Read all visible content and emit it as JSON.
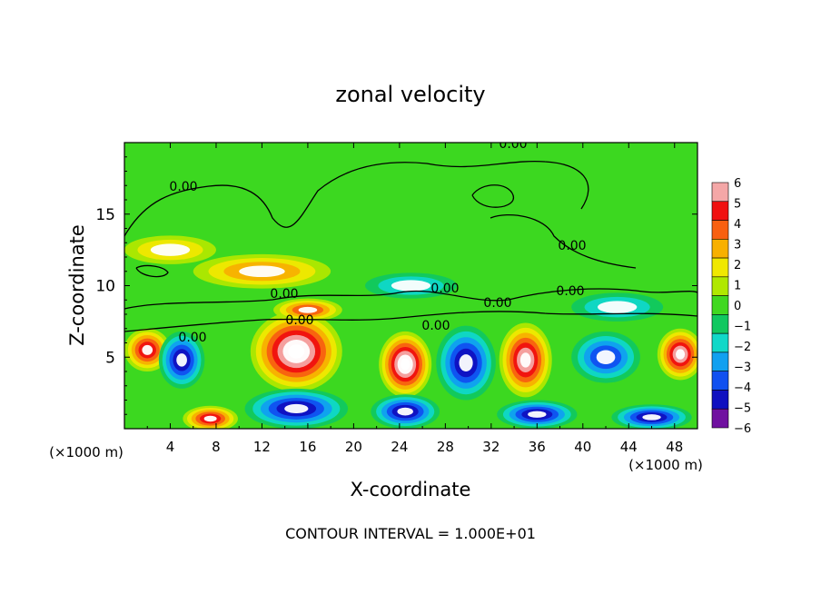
{
  "chart_data": {
    "type": "heatmap",
    "title": "zonal velocity",
    "xlabel": "X-coordinate",
    "ylabel": "Z-coordinate",
    "x_unit_left": "(×1000 m)",
    "x_unit_right": "(×1000 m)",
    "xlim": [
      0,
      50
    ],
    "ylim": [
      0,
      20
    ],
    "xticks": [
      "4",
      "8",
      "12",
      "16",
      "20",
      "24",
      "28",
      "32",
      "36",
      "40",
      "44",
      "48"
    ],
    "yticks": [
      "5",
      "10",
      "15"
    ],
    "colorbar": {
      "labels": [
        "6",
        "5",
        "4",
        "3",
        "2",
        "1",
        "0",
        "−1",
        "−2",
        "−3",
        "−4",
        "−5",
        "−6"
      ],
      "colors": [
        "#f4a7a7",
        "#f01010",
        "#f86010",
        "#f8b000",
        "#f0e800",
        "#b0e800",
        "#40d820",
        "#10c860",
        "#10d8c8",
        "#10a0f0",
        "#1050f0",
        "#1010c0",
        "#7010a0"
      ]
    },
    "contour_labels": [
      "0.00",
      "0.00",
      "0.00",
      "0.00",
      "0.00",
      "0.00",
      "0.00",
      "0.00",
      "0.00",
      "0.00"
    ],
    "footnote": "CONTOUR INTERVAL = 1.000E+01",
    "features": [
      {
        "kind": "warm",
        "x": 2,
        "z": 5.5,
        "rx": 2,
        "rz": 1.5,
        "v": 5
      },
      {
        "kind": "cold",
        "x": 5,
        "z": 4.8,
        "rx": 2,
        "rz": 2,
        "v": -5
      },
      {
        "kind": "warm",
        "x": 15,
        "z": 5.4,
        "rx": 4,
        "rz": 2.8,
        "v": 7
      },
      {
        "kind": "cold",
        "x": 15,
        "z": 1.4,
        "rx": 4.5,
        "rz": 1.4,
        "v": -5
      },
      {
        "kind": "warm",
        "x": 24.5,
        "z": 4.5,
        "rx": 2.3,
        "rz": 2.3,
        "v": 7
      },
      {
        "kind": "cold",
        "x": 24.5,
        "z": 1.2,
        "rx": 3,
        "rz": 1.2,
        "v": -5
      },
      {
        "kind": "cold",
        "x": 29.8,
        "z": 4.6,
        "rx": 2.6,
        "rz": 2.6,
        "v": -5
      },
      {
        "kind": "warm",
        "x": 35,
        "z": 4.8,
        "rx": 2.3,
        "rz": 2.6,
        "v": 6
      },
      {
        "kind": "cold",
        "x": 42,
        "z": 5,
        "rx": 3,
        "rz": 1.8,
        "v": -4
      },
      {
        "kind": "warm",
        "x": 48.5,
        "z": 5.2,
        "rx": 2,
        "rz": 1.8,
        "v": 6
      },
      {
        "kind": "warm",
        "x": 7.5,
        "z": 0.7,
        "rx": 2.4,
        "rz": 0.9,
        "v": 5
      },
      {
        "kind": "cold",
        "x": 36,
        "z": 1.0,
        "rx": 3.5,
        "rz": 1.0,
        "v": -5
      },
      {
        "kind": "cold",
        "x": 46,
        "z": 0.8,
        "rx": 3.5,
        "rz": 0.9,
        "v": -5
      },
      {
        "kind": "warm",
        "x": 12,
        "z": 11,
        "rx": 6,
        "rz": 1.2,
        "v": 3
      },
      {
        "kind": "warm",
        "x": 4,
        "z": 12.5,
        "rx": 4,
        "rz": 1,
        "v": 2
      },
      {
        "kind": "warm",
        "x": 16,
        "z": 8.3,
        "rx": 3,
        "rz": 0.8,
        "v": 4
      },
      {
        "kind": "cold",
        "x": 25,
        "z": 10,
        "rx": 4,
        "rz": 0.9,
        "v": -2
      },
      {
        "kind": "cold",
        "x": 43,
        "z": 8.5,
        "rx": 4,
        "rz": 1,
        "v": -2
      }
    ]
  }
}
